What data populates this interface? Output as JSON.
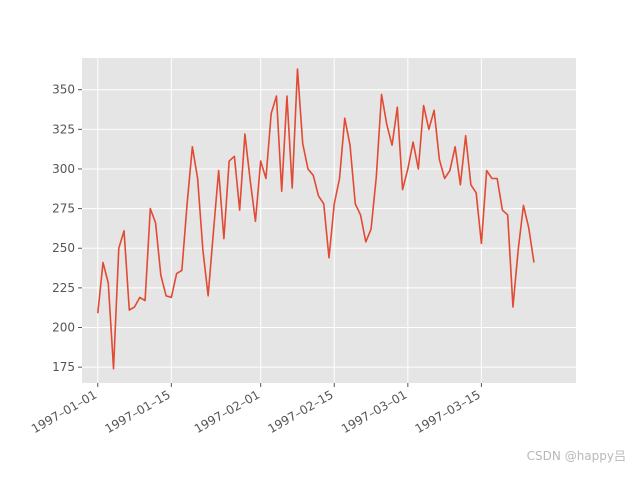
{
  "chart_data": {
    "type": "line",
    "title": "",
    "xlabel": "",
    "ylabel": "",
    "x_start": "1997-01-01",
    "x_step": "1 day",
    "xlim": [
      "1996-12-29",
      "1997-04-02"
    ],
    "ylim": [
      165,
      370
    ],
    "grid": true,
    "style": "ggplot",
    "line_color": "#E24A33",
    "background_color": "#E5E5E5",
    "x_ticks": [
      {
        "date": "1997-01-01",
        "label": "1997–01–01"
      },
      {
        "date": "1997-01-15",
        "label": "1997–01–15"
      },
      {
        "date": "1997-02-01",
        "label": "1997–02–01"
      },
      {
        "date": "1997-02-15",
        "label": "1997–02–15"
      },
      {
        "date": "1997-03-01",
        "label": "1997–03–01"
      },
      {
        "date": "1997-03-15",
        "label": "1997–03–15"
      }
    ],
    "y_ticks": [
      175,
      200,
      225,
      250,
      275,
      300,
      325,
      350
    ],
    "series": [
      {
        "values": [
          209,
          241,
          228,
          174,
          250,
          261,
          211,
          213,
          219,
          217,
          275,
          266,
          233,
          220,
          219,
          234,
          236,
          278,
          314,
          294,
          249,
          220,
          260,
          299,
          256,
          305,
          308,
          274,
          322,
          293,
          267,
          305,
          294,
          335,
          346,
          286,
          346,
          288,
          363,
          316,
          300,
          296,
          283,
          278,
          244,
          278,
          294,
          332,
          315,
          278,
          271,
          254,
          262,
          295,
          347,
          328,
          315,
          339,
          287,
          300,
          317,
          300,
          340,
          325,
          337,
          306,
          294,
          299,
          314,
          290,
          321,
          290,
          285,
          253,
          299,
          294,
          294,
          274,
          271,
          213,
          249,
          277,
          263,
          241
        ]
      }
    ]
  },
  "watermark": "CSDN @happy吕"
}
